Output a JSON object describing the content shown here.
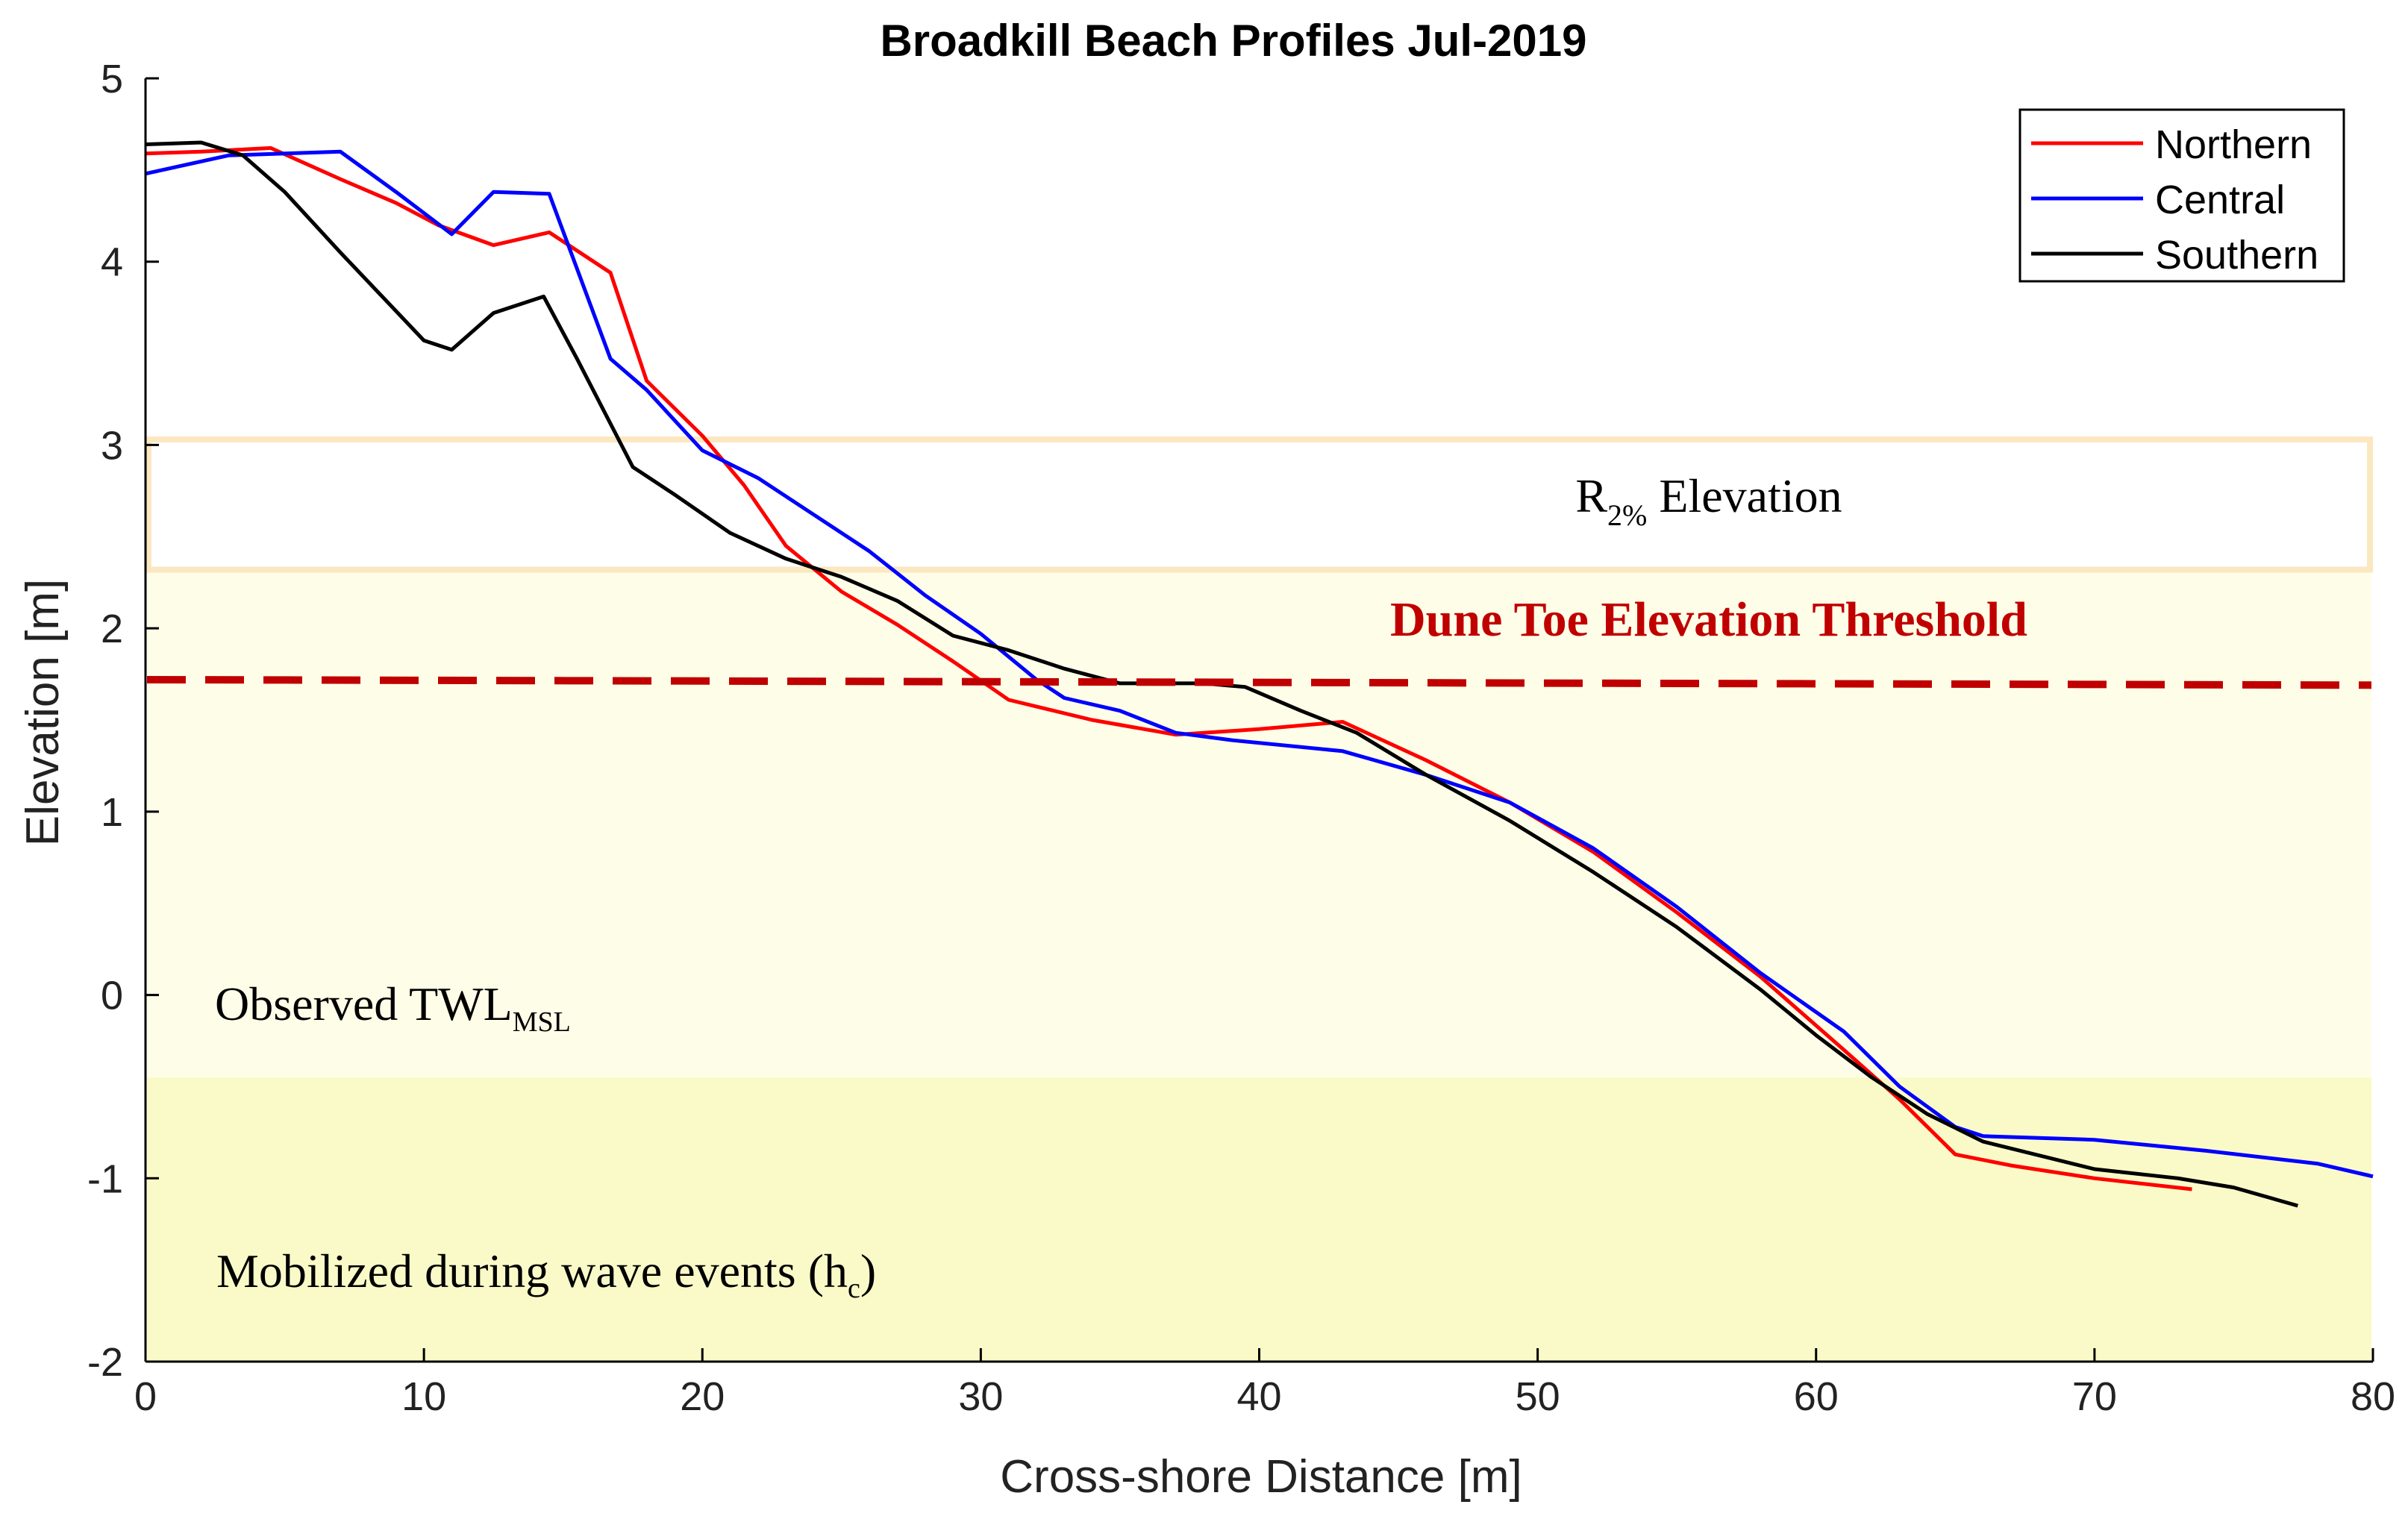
{
  "chart_data": {
    "type": "line",
    "title": "Broadkill Beach Profiles Jul-2019",
    "xlabel": "Cross-shore Distance [m]",
    "ylabel": "Elevation [m]",
    "xlim": [
      0,
      80
    ],
    "ylim": [
      -2,
      5
    ],
    "xticks": [
      0,
      10,
      20,
      30,
      40,
      50,
      60,
      70,
      80
    ],
    "yticks": [
      5,
      4,
      3,
      2,
      1,
      0,
      -1,
      -2
    ],
    "grid": false,
    "legend_position": "top-right",
    "series": [
      {
        "name": "Northern",
        "color": "#ff0000",
        "points": [
          [
            0,
            4.59
          ],
          [
            2,
            4.6
          ],
          [
            4.5,
            4.62
          ],
          [
            7,
            4.45
          ],
          [
            9,
            4.32
          ],
          [
            10.5,
            4.2
          ],
          [
            12.5,
            4.09
          ],
          [
            14.5,
            4.16
          ],
          [
            16.7,
            3.94
          ],
          [
            18,
            3.35
          ],
          [
            20,
            3.05
          ],
          [
            21.5,
            2.78
          ],
          [
            23,
            2.45
          ],
          [
            25,
            2.2
          ],
          [
            27,
            2.02
          ],
          [
            29,
            1.82
          ],
          [
            31,
            1.61
          ],
          [
            34,
            1.5
          ],
          [
            37,
            1.42
          ],
          [
            40,
            1.45
          ],
          [
            43,
            1.49
          ],
          [
            46,
            1.28
          ],
          [
            49,
            1.05
          ],
          [
            52,
            0.78
          ],
          [
            55,
            0.45
          ],
          [
            58,
            0.1
          ],
          [
            61,
            -0.3
          ],
          [
            63,
            -0.57
          ],
          [
            65,
            -0.87
          ],
          [
            67,
            -0.93
          ],
          [
            70,
            -1.0
          ],
          [
            73.5,
            -1.06
          ]
        ]
      },
      {
        "name": "Central",
        "color": "#0000ff",
        "points": [
          [
            0,
            4.48
          ],
          [
            3,
            4.58
          ],
          [
            7,
            4.6
          ],
          [
            9,
            4.38
          ],
          [
            11,
            4.15
          ],
          [
            12.5,
            4.38
          ],
          [
            14.5,
            4.37
          ],
          [
            16.7,
            3.47
          ],
          [
            18,
            3.3
          ],
          [
            20,
            2.97
          ],
          [
            22,
            2.82
          ],
          [
            24,
            2.62
          ],
          [
            26,
            2.42
          ],
          [
            28,
            2.18
          ],
          [
            30,
            1.97
          ],
          [
            32,
            1.72
          ],
          [
            33,
            1.62
          ],
          [
            35,
            1.55
          ],
          [
            37,
            1.43
          ],
          [
            39,
            1.39
          ],
          [
            43,
            1.33
          ],
          [
            46,
            1.2
          ],
          [
            49,
            1.05
          ],
          [
            52,
            0.8
          ],
          [
            55,
            0.48
          ],
          [
            58,
            0.12
          ],
          [
            61,
            -0.2
          ],
          [
            63,
            -0.5
          ],
          [
            65,
            -0.72
          ],
          [
            66,
            -0.77
          ],
          [
            70,
            -0.79
          ],
          [
            74,
            -0.85
          ],
          [
            78,
            -0.92
          ],
          [
            80,
            -0.99
          ]
        ]
      },
      {
        "name": "Southern",
        "color": "#000000",
        "points": [
          [
            0,
            4.64
          ],
          [
            2,
            4.65
          ],
          [
            3.5,
            4.58
          ],
          [
            5,
            4.38
          ],
          [
            7,
            4.05
          ],
          [
            10,
            3.57
          ],
          [
            11,
            3.52
          ],
          [
            12.5,
            3.72
          ],
          [
            14.3,
            3.81
          ],
          [
            15.5,
            3.47
          ],
          [
            17.5,
            2.88
          ],
          [
            19,
            2.73
          ],
          [
            21,
            2.52
          ],
          [
            23,
            2.38
          ],
          [
            25,
            2.28
          ],
          [
            27,
            2.15
          ],
          [
            29,
            1.96
          ],
          [
            31,
            1.88
          ],
          [
            33,
            1.78
          ],
          [
            35,
            1.7
          ],
          [
            38,
            1.7
          ],
          [
            39.5,
            1.68
          ],
          [
            41.5,
            1.55
          ],
          [
            43.5,
            1.43
          ],
          [
            46,
            1.2
          ],
          [
            49,
            0.95
          ],
          [
            52,
            0.67
          ],
          [
            55,
            0.37
          ],
          [
            58,
            0.03
          ],
          [
            60,
            -0.22
          ],
          [
            62,
            -0.45
          ],
          [
            64,
            -0.65
          ],
          [
            66,
            -0.8
          ],
          [
            70,
            -0.95
          ],
          [
            73,
            -1.0
          ],
          [
            75,
            -1.05
          ],
          [
            77.3,
            -1.15
          ]
        ]
      }
    ],
    "bands": [
      {
        "label": "Mobilized during wave events (h",
        "label_sub": "c",
        "label_tail": ")",
        "y_from": -2,
        "y_to": -0.45,
        "color": "#fafac8"
      },
      {
        "label": "Observed TWL",
        "label_sub": "MSL",
        "y_from": -0.45,
        "y_to": 2.32,
        "color": "#fefee8"
      }
    ],
    "r2_box": {
      "label": "R",
      "label_sub": "2%",
      "label_tail": " Elevation",
      "y_from": 2.32,
      "y_to": 3.03,
      "edge_color": "#fbe7c0"
    },
    "dune_toe": {
      "label": "Dune Toe Elevation Threshold",
      "y_start": 1.72,
      "y_end": 1.69,
      "color": "#c00000"
    }
  }
}
